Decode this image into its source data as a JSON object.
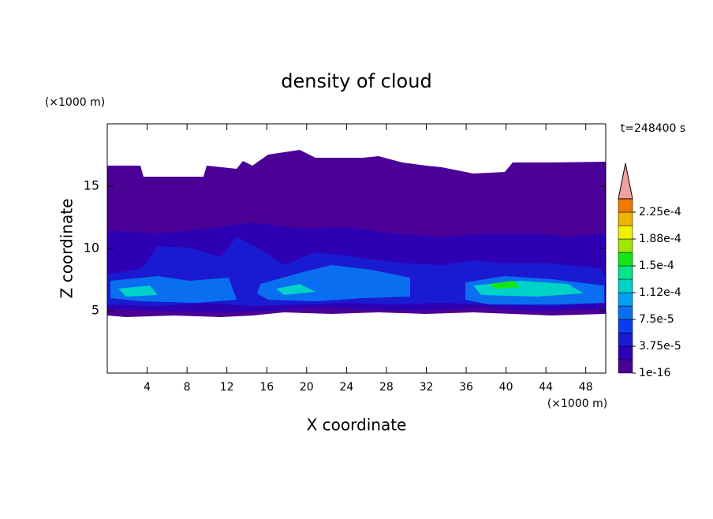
{
  "chart_data": {
    "type": "contour",
    "title": "density of cloud",
    "x_label": "X coordinate",
    "y_label": "Z coordinate",
    "x_unit": "(×1000 m)",
    "y_unit": "(×1000 m)",
    "time_label": "t=248400 s",
    "xlim": [
      0,
      50
    ],
    "xticks": [
      4,
      8,
      12,
      16,
      20,
      24,
      28,
      32,
      36,
      40,
      44,
      48
    ],
    "ylim": [
      0,
      20
    ],
    "yticks": [
      5,
      10,
      15
    ],
    "colorbar": {
      "clim": [
        1e-16,
        0.00024375
      ],
      "colors": [
        "#4b0096",
        "#2d00b4",
        "#1a1ad2",
        "#0a3cf0",
        "#0a6ef0",
        "#00a0f0",
        "#00d2c8",
        "#00e68c",
        "#14e614",
        "#a0e600",
        "#f0f000",
        "#f0b400",
        "#f07800",
        "#f03c00",
        "#e60000"
      ],
      "extend_color": "#f0a0a0",
      "ticks": [
        {
          "value": 1e-16,
          "label": "1e-16"
        },
        {
          "value": 3.75e-05,
          "label": "3.75e-5"
        },
        {
          "value": 7.5e-05,
          "label": "7.5e-5"
        },
        {
          "value": 0.0001125,
          "label": "1.12e-4"
        },
        {
          "value": 0.00015,
          "label": "1.5e-4"
        },
        {
          "value": 0.0001875,
          "label": "1.88e-4"
        },
        {
          "value": 0.000225,
          "label": "2.25e-4"
        }
      ]
    }
  }
}
